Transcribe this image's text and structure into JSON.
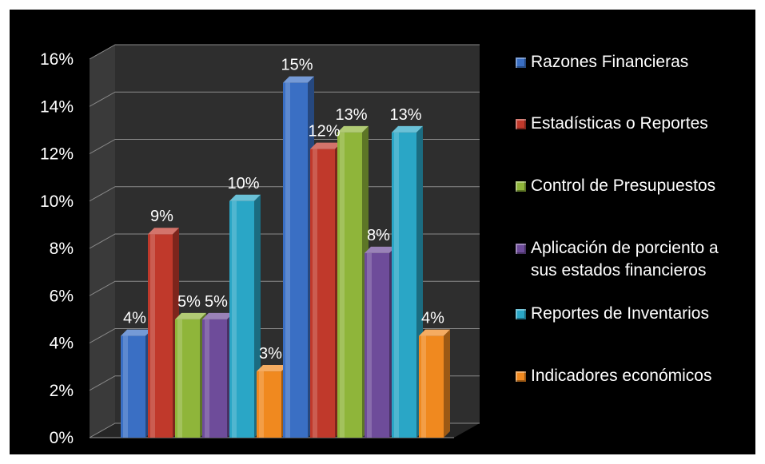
{
  "chart_data": {
    "type": "bar",
    "title": "",
    "xlabel": "",
    "ylabel": "",
    "ylim": [
      0,
      16
    ],
    "yticks": [
      "0%",
      "2%",
      "4%",
      "6%",
      "8%",
      "10%",
      "12%",
      "14%",
      "16%"
    ],
    "grid": true,
    "legend_position": "right",
    "groups": 2,
    "series": [
      {
        "name": "Razones Financieras",
        "color": "#3a6fc4",
        "values": [
          4.3,
          15.0
        ],
        "labels": [
          "4%",
          "15%"
        ]
      },
      {
        "name": "Estadísticas o Reportes",
        "color": "#c0392b",
        "values": [
          8.6,
          12.2
        ],
        "labels": [
          "9%",
          "12%"
        ]
      },
      {
        "name": "Control de Presupuestos",
        "color": "#8fb53a",
        "values": [
          5.0,
          12.9
        ],
        "labels": [
          "5%",
          "13%"
        ]
      },
      {
        "name": "Aplicación de porciento a\nsus estados financieros",
        "color": "#6e4c9a",
        "values": [
          5.0,
          7.8
        ],
        "labels": [
          "5%",
          "8%"
        ]
      },
      {
        "name": "Reportes de Inventarios",
        "color": "#2aa6c6",
        "values": [
          10.0,
          12.9
        ],
        "labels": [
          "10%",
          "13%"
        ]
      },
      {
        "name": "Indicadores económicos",
        "color": "#f0891f",
        "values": [
          2.8,
          4.3
        ],
        "labels": [
          "3%",
          "4%"
        ]
      }
    ]
  }
}
